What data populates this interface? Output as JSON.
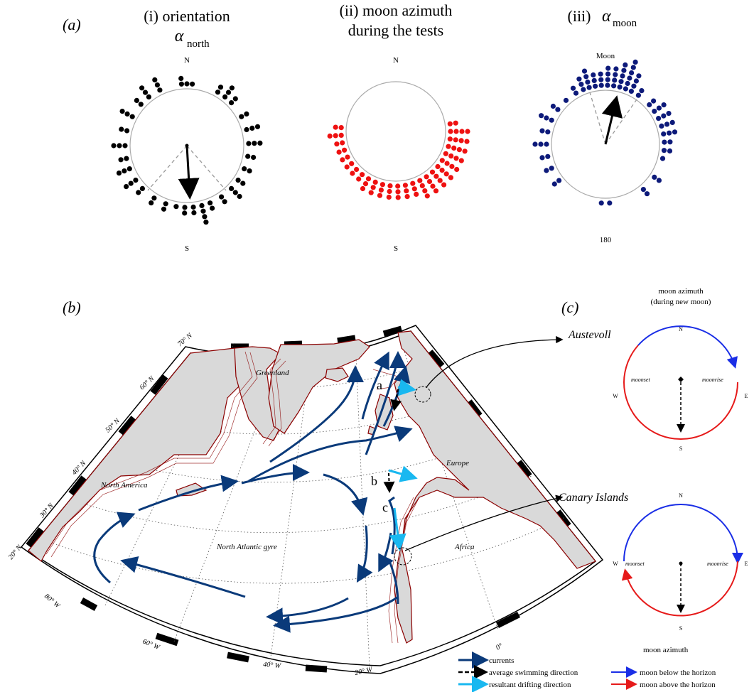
{
  "panel_a": {
    "label": "(a)",
    "sub_i": {
      "title_line1": "(i) orientation",
      "symbol": "α",
      "subscript": "north",
      "top_label": "N",
      "bottom_label": "S"
    },
    "sub_ii": {
      "title_line1": "(ii) moon azimuth",
      "title_line2": "during the tests",
      "top_label": "N",
      "bottom_label": "S"
    },
    "sub_iii": {
      "title_prefix": "(iii)",
      "symbol": "α",
      "subscript": "moon",
      "top_label": "Moon",
      "bottom_label": "180"
    },
    "colors": {
      "orientation": "#000000",
      "moon_azimuth": "#ee1111",
      "alpha_moon": "#0d1a7a"
    }
  },
  "panel_b": {
    "label": "(b)",
    "lat_labels": [
      "70° N",
      "60° N",
      "50° N",
      "40° N",
      "30° N",
      "20° N"
    ],
    "lon_labels": [
      "80° W",
      "60° W",
      "40° W",
      "20° W",
      "0°"
    ],
    "regions": [
      "Greenland",
      "North America",
      "Europe",
      "Africa",
      "North Atlantic gyre"
    ],
    "sites": [
      "Austevoll",
      "Canary Islands"
    ],
    "points": [
      "a",
      "b",
      "c"
    ],
    "legend": [
      {
        "label": "currents",
        "color": "#0a3a7a"
      },
      {
        "label": "average swimming direction",
        "color": "#000000"
      },
      {
        "label": "resultant drifting direction",
        "color": "#19b8f0"
      }
    ],
    "colors": {
      "land": "#d9d9d9",
      "isobath": "#8b0000",
      "current": "#0a3a7a",
      "drift": "#19b8f0"
    }
  },
  "panel_c": {
    "label": "(c)",
    "title_line1": "moon azimuth",
    "title_line2": "(during new moon)",
    "dial_labels": {
      "n": "N",
      "s": "S",
      "w": "W",
      "e": "E",
      "moonset": "moonset",
      "moonrise": "moonrise"
    },
    "legend_title": "moon azimuth",
    "legend": [
      {
        "label": "moon below the horizon",
        "color": "#1a2ee6"
      },
      {
        "label": "moon above the horizon",
        "color": "#e61a1a"
      }
    ]
  }
}
